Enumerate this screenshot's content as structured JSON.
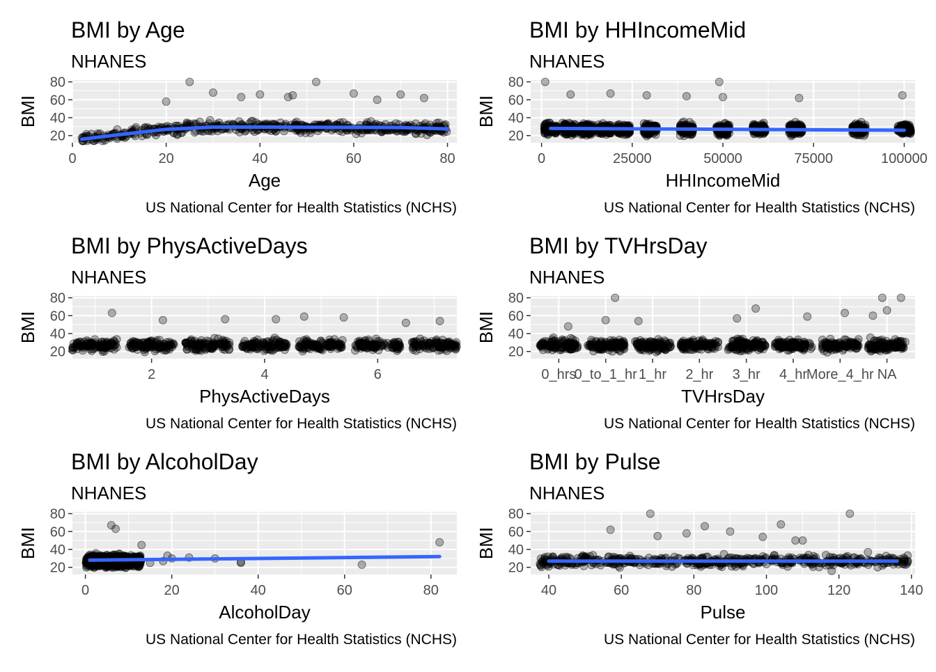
{
  "chart_data": [
    {
      "type": "scatter",
      "title": "BMI by Age",
      "subtitle": "NHANES",
      "caption": "US National Center for Health Statistics (NCHS)",
      "xlabel": "Age",
      "ylabel": "BMI",
      "xlim": [
        0,
        82
      ],
      "ylim": [
        12,
        82
      ],
      "xticks": [
        0,
        20,
        40,
        60,
        80
      ],
      "xtick_labels": [
        "0",
        "20",
        "40",
        "60",
        "80"
      ],
      "yticks": [
        20,
        40,
        60,
        80
      ],
      "ytick_labels": [
        "20",
        "40",
        "60",
        "80"
      ],
      "points_color": "#000000",
      "smooth_color": "#3366ff",
      "smooth": {
        "x": [
          2,
          10,
          20,
          30,
          40,
          50,
          60,
          70,
          80
        ],
        "y": [
          16,
          21,
          27,
          29.5,
          29.5,
          29.3,
          29.2,
          29,
          27.5
        ]
      },
      "outliers": {
        "x": [
          25,
          30,
          36,
          40,
          47,
          52,
          60,
          70,
          75,
          20,
          65,
          46
        ],
        "y": [
          80,
          68,
          63,
          66,
          65,
          80,
          67,
          66,
          62,
          58,
          60,
          63
        ]
      },
      "grid": true
    },
    {
      "type": "scatter",
      "title": "BMI by HHIncomeMid",
      "subtitle": "NHANES",
      "caption": "US National Center for Health Statistics (NCHS)",
      "xlabel": "HHIncomeMid",
      "ylabel": "BMI",
      "xlim": [
        -3000,
        103000
      ],
      "ylim": [
        12,
        82
      ],
      "xticks": [
        0,
        25000,
        50000,
        75000,
        100000
      ],
      "xtick_labels": [
        "0",
        "25000",
        "50000",
        "75000",
        "100000"
      ],
      "yticks": [
        20,
        40,
        60,
        80
      ],
      "ytick_labels": [
        "20",
        "40",
        "60",
        "80"
      ],
      "points_color": "#000000",
      "smooth_color": "#3366ff",
      "x_groups": [
        2500,
        7500,
        12500,
        17500,
        22500,
        30000,
        40000,
        50000,
        60000,
        70000,
        87500,
        100000
      ],
      "smooth": {
        "x": [
          2500,
          100000
        ],
        "y": [
          28,
          26
        ]
      },
      "outliers": {
        "x": [
          1000,
          8000,
          19000,
          29000,
          40000,
          49000,
          50000,
          71000,
          99500
        ],
        "y": [
          80,
          66,
          67,
          65,
          64,
          80,
          63,
          62,
          65
        ]
      },
      "grid": true
    },
    {
      "type": "scatter",
      "title": "BMI by PhysActiveDays",
      "subtitle": "NHANES",
      "caption": "US National Center for Health Statistics (NCHS)",
      "xlabel": "PhysActiveDays",
      "ylabel": "BMI",
      "xlim": [
        0.6,
        7.4
      ],
      "ylim": [
        12,
        82
      ],
      "xticks": [
        2,
        4,
        6
      ],
      "xtick_labels": [
        "2",
        "4",
        "6"
      ],
      "yticks": [
        20,
        40,
        60,
        80
      ],
      "ytick_labels": [
        "20",
        "40",
        "60",
        "80"
      ],
      "points_color": "#000000",
      "x_groups": [
        1,
        2,
        3,
        4,
        5,
        6,
        7
      ],
      "outliers": {
        "x": [
          1.3,
          2.2,
          3.3,
          4.2,
          4.7,
          5.4,
          6.5,
          7.1
        ],
        "y": [
          63,
          55,
          56,
          56,
          59,
          58,
          52,
          54
        ]
      },
      "grid": true
    },
    {
      "type": "scatter",
      "title": "BMI by TVHrsDay",
      "subtitle": "NHANES",
      "caption": "US National Center for Health Statistics (NCHS)",
      "xlabel": "TVHrsDay",
      "ylabel": "BMI",
      "xlim": [
        0.4,
        8.6
      ],
      "ylim": [
        12,
        82
      ],
      "categories": [
        "0_hrs",
        "0_to_1_hr",
        "1_hr",
        "2_hr",
        "3_hr",
        "4_hr",
        "More_4_hr",
        "NA"
      ],
      "xticks": [
        1,
        2,
        3,
        4,
        5,
        6,
        7,
        8
      ],
      "xtick_labels": [
        "0_hrs",
        "0_to_1_hr",
        "1_hr",
        "2_hr",
        "3_hr",
        "4_hr",
        "More_4_hr",
        "NA"
      ],
      "yticks": [
        20,
        40,
        60,
        80
      ],
      "ytick_labels": [
        "20",
        "40",
        "60",
        "80"
      ],
      "points_color": "#000000",
      "x_groups": [
        1,
        2,
        3,
        4,
        5,
        6,
        7,
        8
      ],
      "outliers": {
        "x": [
          1.2,
          2.2,
          2.0,
          2.7,
          4.8,
          5.2,
          6.3,
          7.1,
          7.7,
          7.9,
          8.3,
          8.0
        ],
        "y": [
          48,
          80,
          55,
          54,
          57,
          68,
          59,
          63,
          60,
          80,
          80,
          66
        ]
      },
      "grid": true
    },
    {
      "type": "scatter",
      "title": "BMI by AlcoholDay",
      "subtitle": "NHANES",
      "caption": "US National Center for Health Statistics (NCHS)",
      "xlabel": "AlcoholDay",
      "ylabel": "BMI",
      "xlim": [
        -3,
        86
      ],
      "ylim": [
        12,
        82
      ],
      "xticks": [
        0,
        20,
        40,
        60,
        80
      ],
      "xtick_labels": [
        "0",
        "20",
        "40",
        "60",
        "80"
      ],
      "yticks": [
        20,
        40,
        60,
        80
      ],
      "ytick_labels": [
        "20",
        "40",
        "60",
        "80"
      ],
      "points_color": "#000000",
      "smooth_color": "#3366ff",
      "x_groups": [
        1,
        2,
        3,
        4,
        5,
        6,
        7,
        8,
        9,
        10,
        12
      ],
      "smooth": {
        "x": [
          1,
          82
        ],
        "y": [
          28,
          32
        ]
      },
      "outliers": {
        "x": [
          13,
          15,
          18,
          19,
          20,
          24,
          30,
          36,
          36,
          64,
          82,
          7,
          6
        ],
        "y": [
          45,
          25,
          27,
          33,
          30,
          31,
          30,
          25,
          26,
          23,
          48,
          63,
          67
        ]
      },
      "grid": true
    },
    {
      "type": "scatter",
      "title": "BMI by Pulse",
      "subtitle": "NHANES",
      "caption": "US National Center for Health Statistics (NCHS)",
      "xlabel": "Pulse",
      "ylabel": "BMI",
      "xlim": [
        35,
        141
      ],
      "ylim": [
        12,
        82
      ],
      "xticks": [
        40,
        60,
        80,
        100,
        120,
        140
      ],
      "xtick_labels": [
        "40",
        "60",
        "80",
        "100",
        "120",
        "140"
      ],
      "yticks": [
        20,
        40,
        60,
        80
      ],
      "ytick_labels": [
        "20",
        "40",
        "60",
        "80"
      ],
      "points_color": "#000000",
      "smooth_color": "#3366ff",
      "smooth": {
        "x": [
          40,
          136
        ],
        "y": [
          27,
          27
        ]
      },
      "outliers": {
        "x": [
          40,
          43,
          57,
          68,
          70,
          78,
          83,
          90,
          99,
          104,
          108,
          110,
          116,
          118,
          123,
          126,
          128,
          132,
          136
        ],
        "y": [
          26,
          22,
          62,
          80,
          55,
          58,
          66,
          60,
          54,
          68,
          50,
          50,
          25,
          16,
          80,
          30,
          37,
          22,
          27
        ]
      },
      "grid": true
    }
  ]
}
